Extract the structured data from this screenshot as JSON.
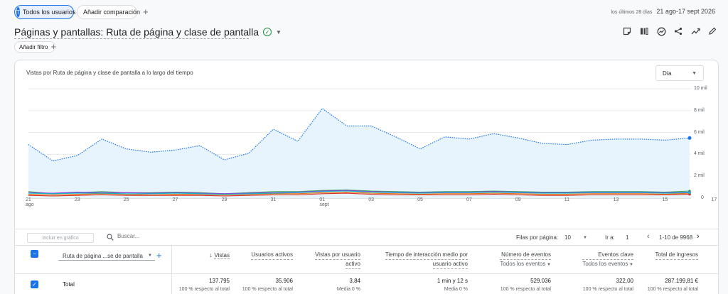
{
  "header": {
    "segment_avatar": "T",
    "segment_label": "Todos los usuarios",
    "add_comparison_label": "Añadir comparación",
    "date_prefix": "los últimos 28 días",
    "date_range": "21 ago-17 sept 2026"
  },
  "report": {
    "title": "Páginas y pantallas: Ruta de página y clase de pantalla",
    "add_filter_label": "Añadir filtro"
  },
  "toolbar_icons": [
    "notes-icon",
    "compare-columns-icon",
    "insights-icon",
    "share-icon",
    "trend-icon",
    "edit-icon"
  ],
  "chart": {
    "title": "Vistas por Ruta de página y clase de pantalla a lo largo del tiempo",
    "granularity": "Día",
    "y_ticks": [
      "10 mil",
      "8 mil",
      "6 mil",
      "4 mil",
      "2 mil",
      "0"
    ],
    "x_ticks": [
      "21",
      "23",
      "25",
      "27",
      "29",
      "31",
      "01",
      "03",
      "05",
      "07",
      "09",
      "11",
      "13",
      "15",
      "17"
    ],
    "x_month_ago": "ago",
    "x_month_sept": "sept"
  },
  "chart_data": {
    "type": "line",
    "x": [
      "21 ago",
      "22 ago",
      "23 ago",
      "24 ago",
      "25 ago",
      "26 ago",
      "27 ago",
      "28 ago",
      "29 ago",
      "30 ago",
      "31 ago",
      "01 sept",
      "02 sept",
      "03 sept",
      "04 sept",
      "05 sept",
      "06 sept",
      "07 sept",
      "08 sept",
      "09 sept",
      "10 sept",
      "11 sept",
      "12 sept",
      "13 sept",
      "14 sept",
      "15 sept",
      "16 sept",
      "17 sept"
    ],
    "ylim": [
      0,
      10000
    ],
    "series": [
      {
        "values": [
          4900,
          3400,
          3900,
          5400,
          4500,
          4200,
          4400,
          4800,
          3500,
          4100,
          6300,
          5200,
          8200,
          6600,
          6600,
          5600,
          4500,
          5600,
          5400,
          5900,
          5500,
          5000,
          4900,
          5300,
          5400,
          5400,
          5300,
          5500
        ],
        "color": "#1a73e8"
      },
      {
        "values": [
          600,
          400,
          500,
          600,
          500,
          500,
          550,
          500,
          400,
          500,
          600,
          600,
          700,
          750,
          650,
          600,
          550,
          600,
          600,
          650,
          600,
          550,
          550,
          600,
          600,
          600,
          550,
          650
        ],
        "color": "#34a853"
      },
      {
        "values": [
          500,
          450,
          550,
          500,
          500,
          450,
          500,
          450,
          400,
          450,
          500,
          550,
          650,
          700,
          600,
          550,
          500,
          550,
          550,
          600,
          550,
          500,
          500,
          550,
          550,
          550,
          500,
          550
        ],
        "color": "#9334e6"
      },
      {
        "values": [
          350,
          300,
          350,
          400,
          350,
          300,
          350,
          350,
          300,
          350,
          400,
          400,
          500,
          550,
          450,
          400,
          350,
          400,
          400,
          450,
          400,
          350,
          350,
          400,
          400,
          400,
          350,
          450
        ],
        "color": "#e8710a"
      },
      {
        "values": [
          250,
          200,
          250,
          300,
          250,
          250,
          250,
          250,
          200,
          250,
          300,
          300,
          400,
          450,
          350,
          300,
          300,
          300,
          300,
          350,
          300,
          250,
          250,
          300,
          300,
          300,
          300,
          350
        ],
        "color": "#d93025"
      },
      {
        "values": [
          450,
          400,
          450,
          450,
          400,
          400,
          450,
          400,
          350,
          400,
          450,
          500,
          600,
          650,
          550,
          500,
          450,
          500,
          500,
          550,
          500,
          450,
          450,
          500,
          500,
          500,
          450,
          500
        ],
        "color": "#12b5cb"
      }
    ]
  },
  "table_controls": {
    "include_label": "Incluir en gráfico",
    "search_placeholder": "Buscar...",
    "rows_per_page_label": "Filas por página:",
    "rows_per_page_value": "10",
    "goto_label": "Ir a:",
    "goto_value": "1",
    "range_text": "1-10 de 9968"
  },
  "table": {
    "dimension_label": "Ruta de página ...se de pantalla",
    "columns": [
      {
        "label": "Vistas",
        "sub": ""
      },
      {
        "label": "Usuarios activos",
        "sub": ""
      },
      {
        "label": "Vistas por usuario",
        "sub": "activo"
      },
      {
        "label": "Tiempo de interacción medio por",
        "sub": "usuario activo"
      },
      {
        "label": "Número de eventos",
        "sub": "Todos los eventos"
      },
      {
        "label": "Eventos clave",
        "sub": "Todos los eventos"
      },
      {
        "label": "Total de ingresos",
        "sub": ""
      }
    ],
    "total_label": "Total",
    "totals": [
      "137.795",
      "35.906",
      "3,84",
      "1 min y 12 s",
      "529.036",
      "322,00",
      "287.199,81 €"
    ],
    "totals_sub": [
      "100 % respecto al total",
      "100 % respecto al total",
      "Media 0 %",
      "Media 0 %",
      "100 % respecto al total",
      "100 % respecto al total",
      "100 % respecto al total"
    ]
  }
}
